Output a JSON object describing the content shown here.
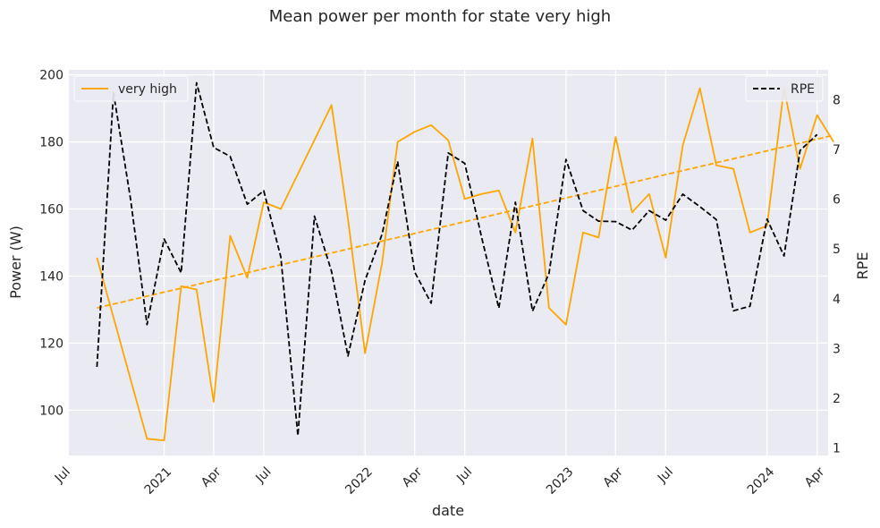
{
  "chart_data": {
    "type": "line",
    "title": "Mean power per month for state very high",
    "xlabel": "date",
    "ylabel_left": "Power (W)",
    "ylabel_right": "RPE",
    "x_tick_labels": [
      "Jul",
      "2021",
      "Apr",
      "Jul",
      "2022",
      "Apr",
      "Jul",
      "2023",
      "Apr",
      "Jul",
      "2024",
      "Apr"
    ],
    "x_tick_dates": [
      "2020-07",
      "2021-01",
      "2021-04",
      "2021-07",
      "2022-01",
      "2022-04",
      "2022-07",
      "2023-01",
      "2023-04",
      "2023-07",
      "2024-01",
      "2024-04"
    ],
    "x_range": [
      "2020-07-12",
      "2024-04-21"
    ],
    "ylim_left": [
      86.5,
      201.5
    ],
    "yticks_left": [
      100,
      120,
      140,
      160,
      180,
      200
    ],
    "ylim_right": [
      0.85,
      8.6
    ],
    "yticks_right": [
      1,
      2,
      3,
      4,
      5,
      6,
      7,
      8
    ],
    "grid": true,
    "legend_left": {
      "placement": "top-left",
      "label": "very high"
    },
    "legend_right": {
      "placement": "top-right",
      "label": "RPE"
    },
    "series": [
      {
        "name": "very high",
        "axis": "left",
        "color": "#FFA500",
        "style": "solid",
        "points": [
          [
            "2020-09",
            145.5
          ],
          [
            "2020-12",
            91.5
          ],
          [
            "2021-01",
            91
          ],
          [
            "2021-02",
            137
          ],
          [
            "2021-03",
            136
          ],
          [
            "2021-04",
            102.5
          ],
          [
            "2021-05",
            152
          ],
          [
            "2021-06",
            139.5
          ],
          [
            "2021-07",
            162
          ],
          [
            "2021-08",
            160
          ],
          [
            "2021-11",
            191
          ],
          [
            "2021-12",
            157
          ],
          [
            "2022-01",
            117
          ],
          [
            "2022-02",
            144
          ],
          [
            "2022-03",
            180
          ],
          [
            "2022-04",
            183
          ],
          [
            "2022-05",
            185
          ],
          [
            "2022-06",
            180.5
          ],
          [
            "2022-07",
            163
          ],
          [
            "2022-08",
            164.5
          ],
          [
            "2022-09",
            165.5
          ],
          [
            "2022-10",
            153
          ],
          [
            "2022-11",
            181
          ],
          [
            "2022-12",
            130.5
          ],
          [
            "2023-01",
            125.5
          ],
          [
            "2023-02",
            153
          ],
          [
            "2023-03",
            151.5
          ],
          [
            "2023-04",
            181.5
          ],
          [
            "2023-05",
            159
          ],
          [
            "2023-06",
            164.5
          ],
          [
            "2023-07",
            145.5
          ],
          [
            "2023-08",
            179
          ],
          [
            "2023-09",
            196
          ],
          [
            "2023-10",
            173
          ],
          [
            "2023-11",
            172
          ],
          [
            "2023-12",
            153
          ],
          [
            "2024-01",
            155
          ],
          [
            "2024-02",
            196
          ],
          [
            "2024-03",
            172
          ],
          [
            "2024-04",
            188
          ],
          [
            "2024-05",
            180
          ]
        ]
      },
      {
        "name": "",
        "axis": "left",
        "color": "#FFA500",
        "style": "dashed",
        "points": [
          [
            "2020-09",
            130.5
          ],
          [
            "2024-05",
            182
          ]
        ]
      },
      {
        "name": "RPE",
        "axis": "right",
        "color": "#000000",
        "style": "dashed",
        "points": [
          [
            "2020-09",
            2.63
          ],
          [
            "2020-10",
            8.14
          ],
          [
            "2020-11",
            6
          ],
          [
            "2020-12",
            3.48
          ],
          [
            "2021-01",
            5.2
          ],
          [
            "2021-02",
            4.52
          ],
          [
            "2021-03",
            8.34
          ],
          [
            "2021-04",
            7.04
          ],
          [
            "2021-05",
            6.86
          ],
          [
            "2021-06",
            5.9
          ],
          [
            "2021-07",
            6.17
          ],
          [
            "2021-08",
            4.84
          ],
          [
            "2021-09",
            1.25
          ],
          [
            "2021-10",
            5.66
          ],
          [
            "2021-11",
            4.55
          ],
          [
            "2021-12",
            2.85
          ],
          [
            "2022-01",
            4.37
          ],
          [
            "2022-02",
            5.3
          ],
          [
            "2022-03",
            6.76
          ],
          [
            "2022-04",
            4.54
          ],
          [
            "2022-05",
            3.91
          ],
          [
            "2022-06",
            6.93
          ],
          [
            "2022-07",
            6.72
          ],
          [
            "2022-08",
            5.22
          ],
          [
            "2022-09",
            3.81
          ],
          [
            "2022-10",
            5.94
          ],
          [
            "2022-11",
            3.75
          ],
          [
            "2022-12",
            4.51
          ],
          [
            "2023-01",
            6.8
          ],
          [
            "2023-02",
            5.77
          ],
          [
            "2023-03",
            5.56
          ],
          [
            "2023-04",
            5.55
          ],
          [
            "2023-05",
            5.38
          ],
          [
            "2023-06",
            5.77
          ],
          [
            "2023-07",
            5.58
          ],
          [
            "2023-08",
            6.1
          ],
          [
            "2023-09",
            5.85
          ],
          [
            "2023-10",
            5.59
          ],
          [
            "2023-11",
            3.76
          ],
          [
            "2023-12",
            3.85
          ],
          [
            "2024-01",
            5.6
          ],
          [
            "2024-02",
            4.86
          ],
          [
            "2024-03",
            6.98
          ],
          [
            "2024-04",
            7.3
          ]
        ]
      }
    ]
  }
}
